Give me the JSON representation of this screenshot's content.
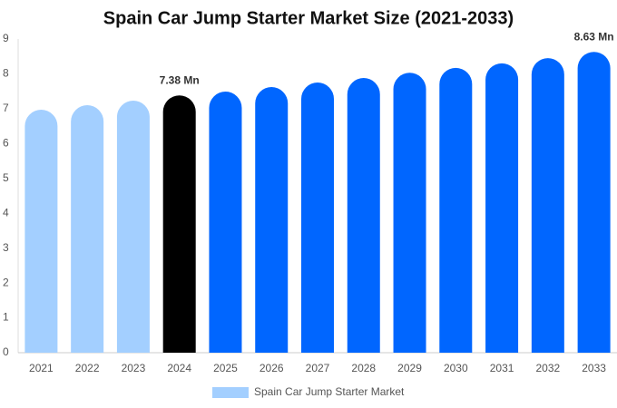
{
  "chart_data": {
    "type": "bar",
    "title": "Spain Car Jump Starter Market Size (2021-2033)",
    "categories": [
      "2021",
      "2022",
      "2023",
      "2024",
      "2025",
      "2026",
      "2027",
      "2028",
      "2029",
      "2030",
      "2031",
      "2032",
      "2033"
    ],
    "series": [
      {
        "name": "Spain Car Jump Starter Market",
        "color": "#a3cfff",
        "colors": [
          "#a3cfff",
          "#a3cfff",
          "#a3cfff",
          "#000000",
          "#0066ff",
          "#0066ff",
          "#0066ff",
          "#0066ff",
          "#0066ff",
          "#0066ff",
          "#0066ff",
          "#0066ff",
          "#0066ff"
        ],
        "values": [
          6.97,
          7.1,
          7.23,
          7.38,
          7.49,
          7.62,
          7.75,
          7.88,
          8.03,
          8.17,
          8.3,
          8.45,
          8.63
        ],
        "value_labels": [
          null,
          null,
          null,
          "7.38 Mn",
          null,
          null,
          null,
          null,
          null,
          null,
          null,
          null,
          "8.63 Mn"
        ]
      }
    ],
    "ylim": [
      0,
      9
    ],
    "yticks": [
      0,
      1,
      2,
      3,
      4,
      5,
      6,
      7,
      8,
      9
    ],
    "grid": false,
    "legend": "bottom"
  }
}
